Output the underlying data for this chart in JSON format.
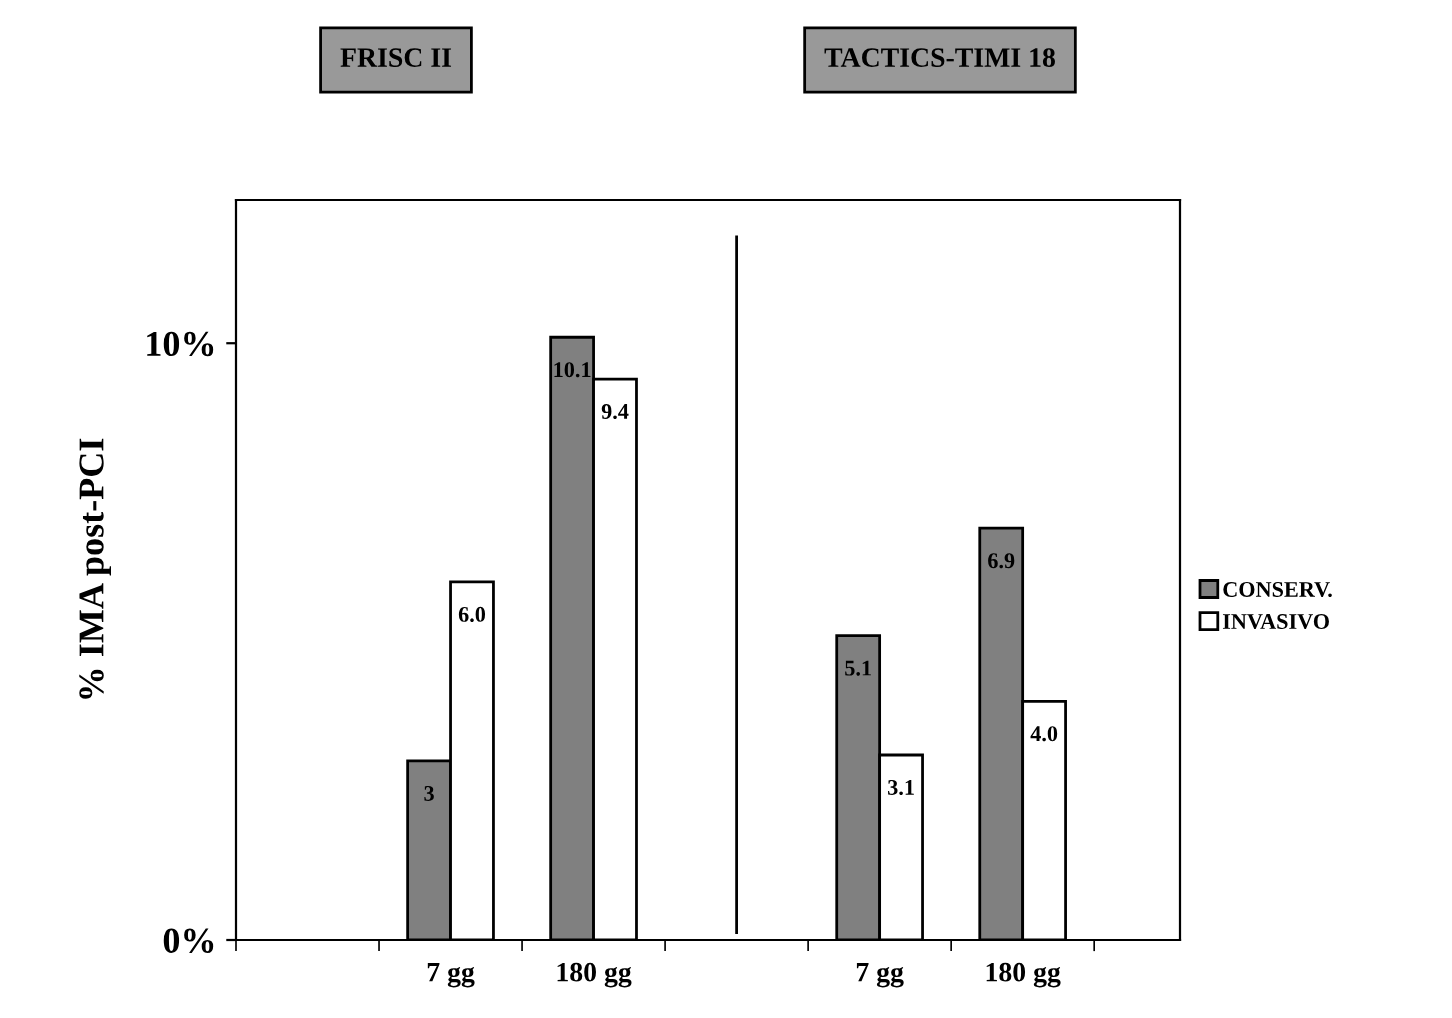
{
  "chart_data": {
    "type": "bar",
    "annotations": [
      "FRISC II",
      "TACTICS-TIMI 18"
    ],
    "ylabel": "% IMA post-PCI",
    "categories": [
      null,
      "7 gg",
      "180 gg",
      null,
      "7 gg",
      "180 gg"
    ],
    "series": [
      {
        "name": "CONSERV.",
        "color": "#808080",
        "values": [
          null,
          3,
          10.1,
          null,
          5.1,
          6.9
        ],
        "value_labels": [
          null,
          "3",
          "10.1",
          null,
          "5.1",
          "6.9"
        ]
      },
      {
        "name": "INVASIVO",
        "color": "#ffffff",
        "values": [
          null,
          6.0,
          9.4,
          null,
          3.1,
          4.0
        ],
        "value_labels": [
          null,
          "6.0",
          "9.4",
          null,
          "3.1",
          "4.0"
        ]
      }
    ],
    "ylim": [
      0,
      12.4
    ],
    "yticks": [
      {
        "value": 0,
        "label": "0%"
      },
      {
        "value": 10,
        "label": "10%"
      }
    ],
    "legend": "right"
  }
}
